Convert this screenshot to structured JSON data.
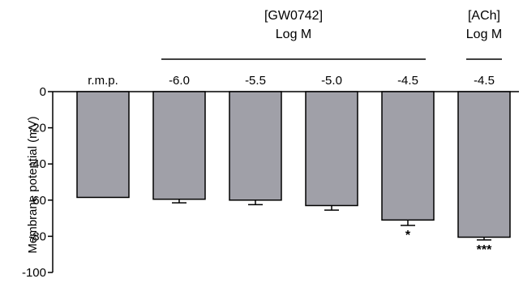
{
  "chart_data": {
    "type": "bar",
    "title": "",
    "xlabel": "",
    "ylabel": "Membrane potential (mV)",
    "ylim": [
      -100,
      0
    ],
    "yticks": [
      0,
      -20,
      -40,
      -60,
      -80,
      -100
    ],
    "categories": [
      "r.m.p.",
      "-6.0",
      "-5.5",
      "-5.0",
      "-4.5",
      "-4.5"
    ],
    "values": [
      -58.5,
      -59.5,
      -60.0,
      -63.0,
      -71.0,
      -80.5
    ],
    "errors": [
      0.0,
      2.0,
      2.5,
      2.5,
      3.0,
      1.5
    ],
    "significance": [
      "",
      "",
      "",
      "",
      "*",
      "***"
    ],
    "groups": [
      {
        "line1": "[GW0742]",
        "line2": "Log M",
        "categories": [
          1,
          2,
          3,
          4
        ]
      },
      {
        "line1": "[ACh]",
        "line2": "Log M",
        "categories": [
          5
        ]
      }
    ],
    "bar_color": "#a0a0a8",
    "edge_color": "#000000",
    "grid": false,
    "legend": "none"
  }
}
